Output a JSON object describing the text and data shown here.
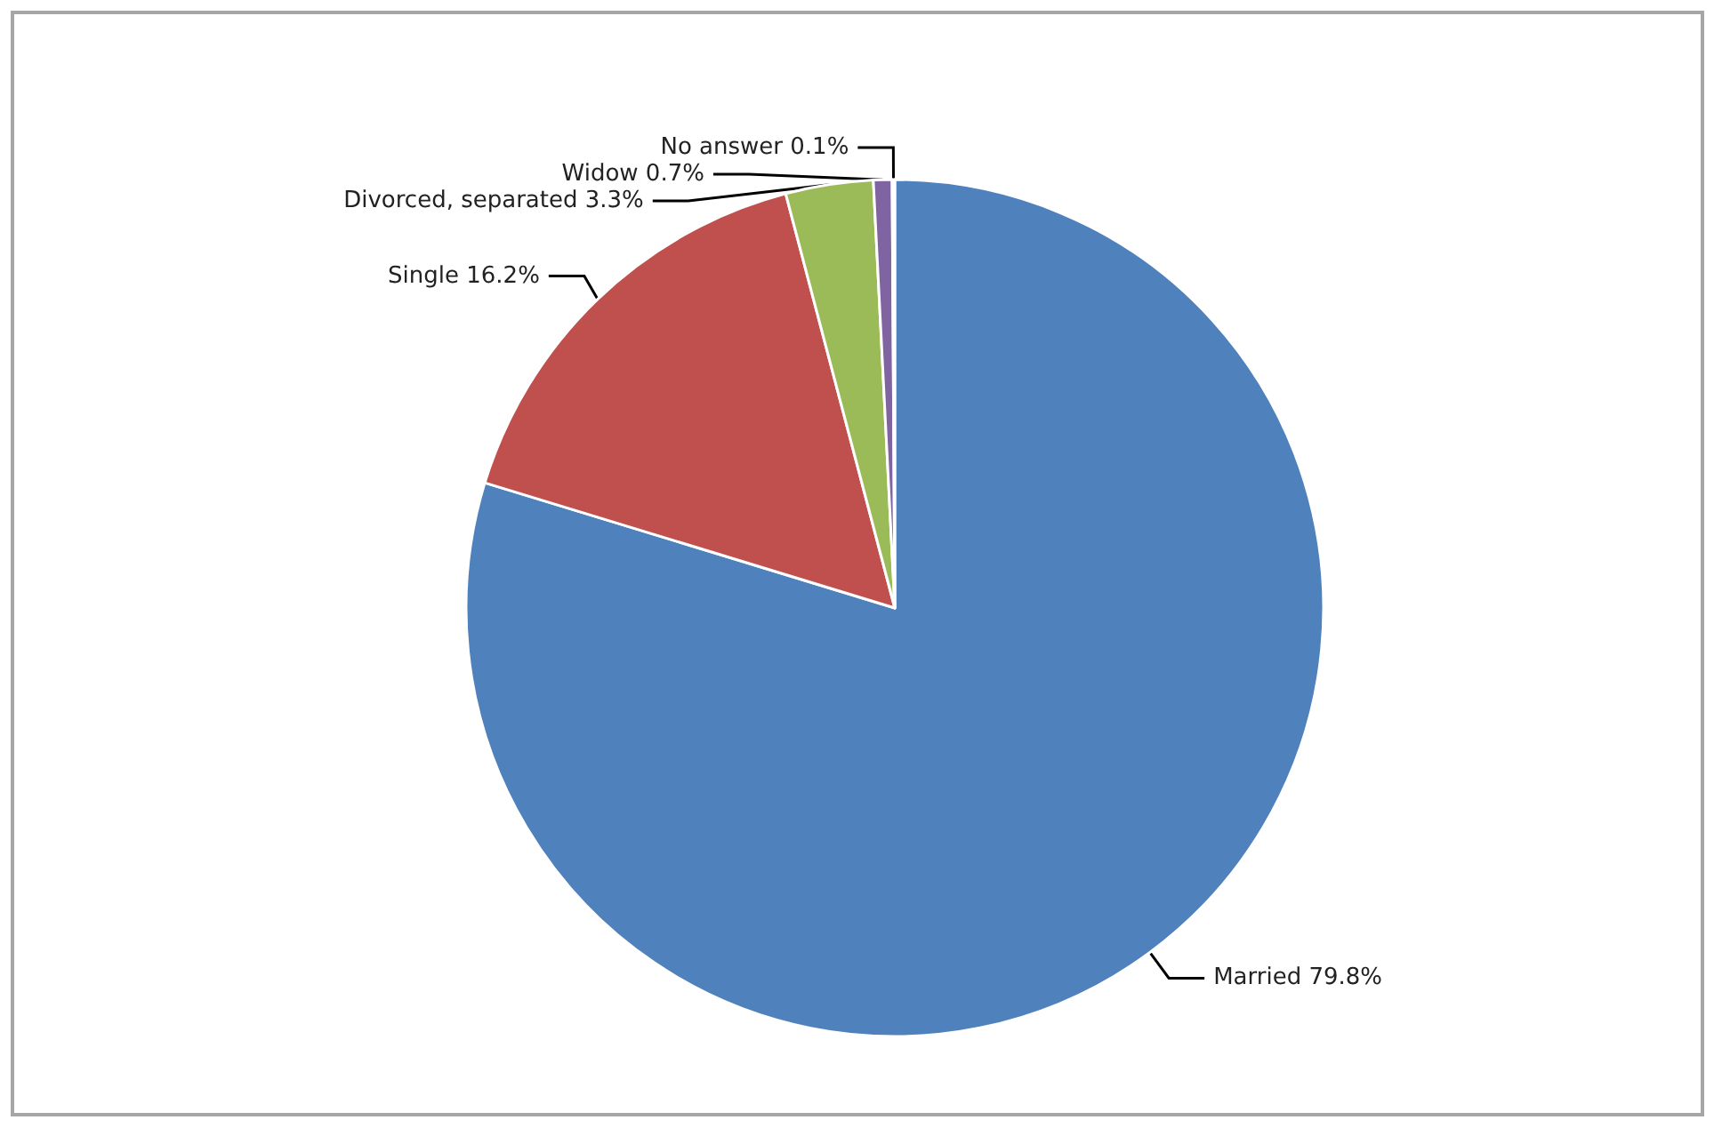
{
  "chart_data": {
    "type": "pie",
    "categories": [
      "Married",
      "Single",
      "Divorced, separated",
      "Widow",
      "No answer"
    ],
    "values": [
      79.8,
      16.2,
      3.3,
      0.7,
      0.1
    ],
    "colors": [
      "#4f81bd",
      "#c0504d",
      "#9bbb59",
      "#8064a2",
      "#4bacc6"
    ],
    "value_labels": [
      "79.8%",
      "16.2%",
      "3.3%",
      "0.7%",
      "0.1%"
    ],
    "legend": false
  }
}
